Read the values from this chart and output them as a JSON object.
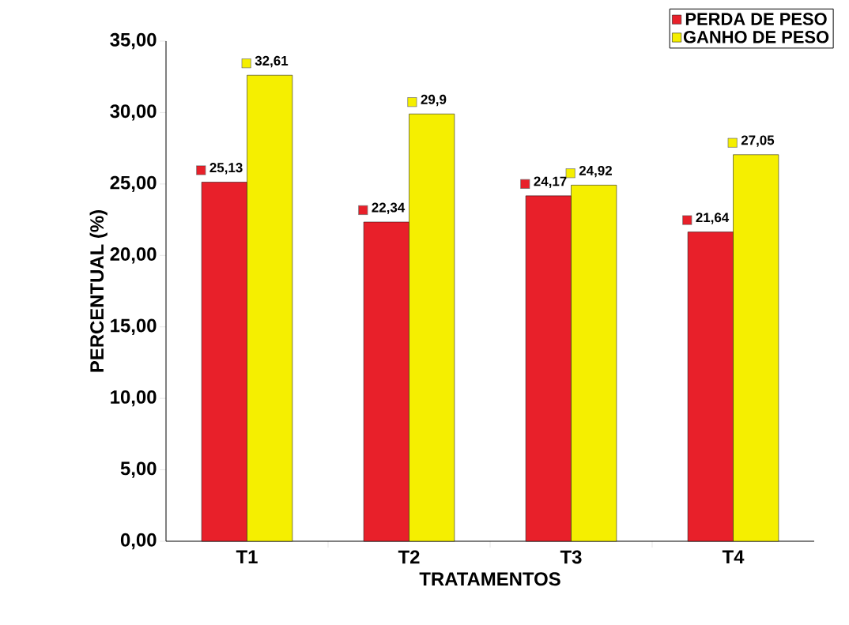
{
  "chart_data": {
    "type": "bar",
    "xlabel": "TRATAMENTOS",
    "ylabel": "PERCENTUAL (%)",
    "categories": [
      "T1",
      "T2",
      "T3",
      "T4"
    ],
    "series": [
      {
        "name": "PERDA DE PESO",
        "color": "#e8202a",
        "values": [
          25.13,
          22.34,
          24.17,
          21.64
        ],
        "value_labels": [
          "25,13",
          "22,34",
          "24,17",
          "21,64"
        ]
      },
      {
        "name": "GANHO DE PESO",
        "color": "#f5ef00",
        "values": [
          32.61,
          29.9,
          24.92,
          27.05
        ],
        "value_labels": [
          "32,61",
          "29,9",
          "24,92",
          "27,05"
        ]
      }
    ],
    "ylim": [
      0,
      35
    ],
    "yticks": [
      {
        "value": 0,
        "label": "0,00"
      },
      {
        "value": 5,
        "label": "5,00"
      },
      {
        "value": 10,
        "label": "10,00"
      },
      {
        "value": 15,
        "label": "15,00"
      },
      {
        "value": 20,
        "label": "20,00"
      },
      {
        "value": 25,
        "label": "25,00"
      },
      {
        "value": 30,
        "label": "30,00"
      },
      {
        "value": 35,
        "label": "35,00"
      }
    ],
    "grid": false,
    "legend": "top right"
  }
}
